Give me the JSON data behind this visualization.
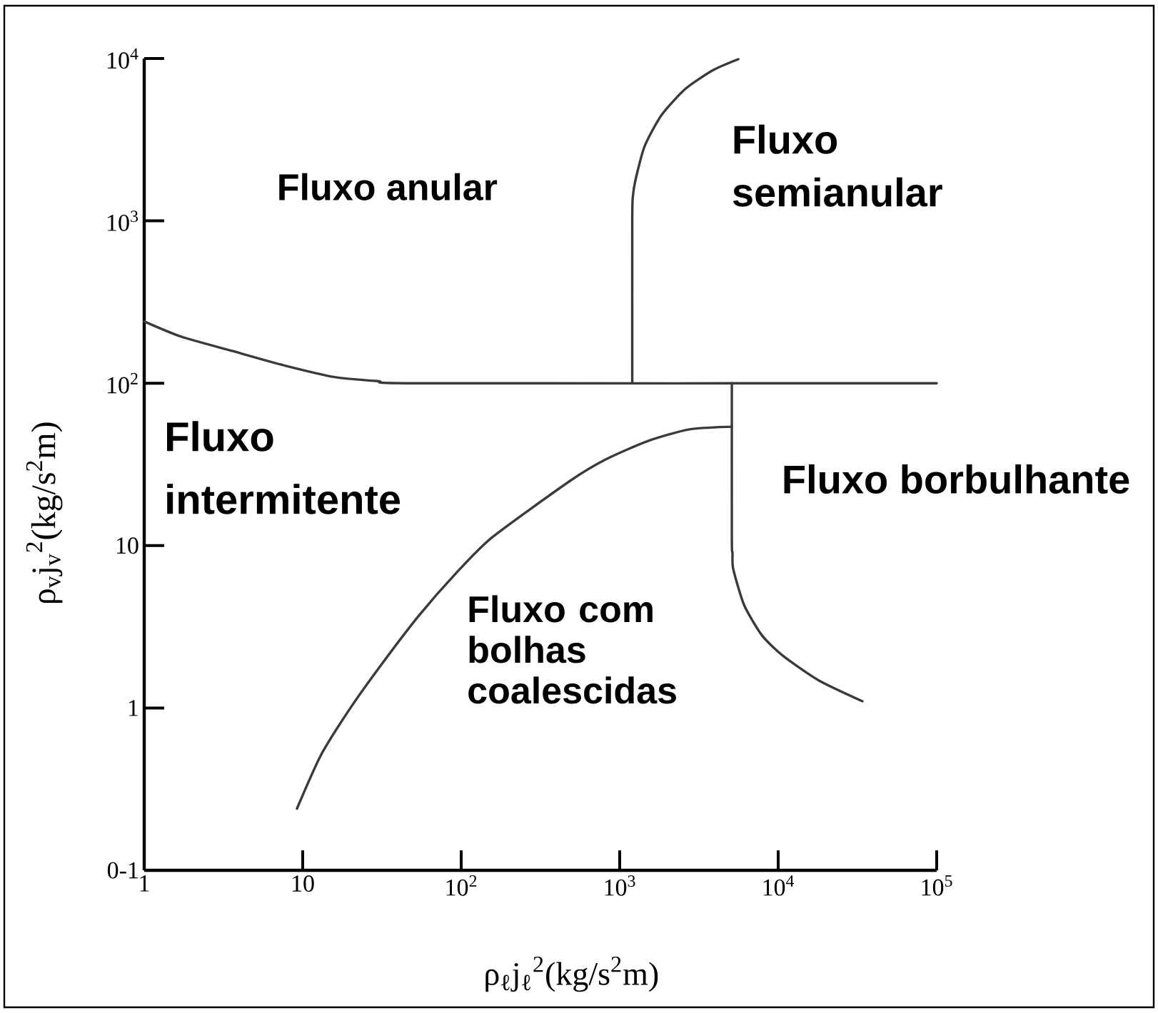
{
  "chart_data": {
    "type": "line",
    "xlabel": "ρ$_{ℓ}$j$_{ℓ}$$^{2}$(kg/s$^{2}$m)",
    "ylabel": "ρ$_{v}$j$_{v}$$^{2}$(kg/s$^{2}$m)",
    "log": "xy",
    "xlim": [
      1,
      100000
    ],
    "ylim": [
      0.1,
      10000
    ],
    "xticks": [
      1,
      10,
      {
        "value": 100,
        "label": "10$^{2}$"
      },
      {
        "value": 1000,
        "label": "10$^{3}$"
      },
      {
        "value": 10000,
        "label": "10$^{4}$"
      },
      {
        "value": 100000,
        "label": "10$^{5}$"
      }
    ],
    "yticks": [
      {
        "value": 0.1,
        "label": "0-1"
      },
      1,
      10,
      {
        "value": 100,
        "label": "10$^{2}$"
      },
      {
        "value": 1000,
        "label": "10$^{3}$"
      },
      {
        "value": 10000,
        "label": "10$^{4}$"
      }
    ],
    "series": [
      {
        "color": "#3a3a3a",
        "x": [
          1,
          1.7,
          3.6,
          7.6,
          16,
          30,
          55,
          100000
        ],
        "values": [
          240,
          194,
          158,
          129,
          109,
          103,
          100,
          100
        ]
      },
      {
        "color": "#3a3a3a",
        "x": [
          1200,
          1200,
          1210,
          1260,
          1440,
          1840,
          2600,
          3900,
          5600
        ],
        "values": [
          100,
          1000,
          1400,
          1800,
          2900,
          4500,
          6500,
          8500,
          9900
        ]
      },
      {
        "color": "#3a3a3a",
        "x": [
          9.2,
          13,
          20,
          32,
          54,
          92,
          156,
          485,
          820,
          1500,
          2750,
          5100
        ],
        "values": [
          0.24,
          0.51,
          1.0,
          1.9,
          3.7,
          6.7,
          11.2,
          25,
          34,
          44,
          52,
          54
        ]
      },
      {
        "color": "#3a3a3a",
        "x": [
          5100,
          5100,
          5150,
          5200,
          6100,
          7900,
          10700,
          18000,
          34000
        ],
        "values": [
          100,
          11,
          9,
          7.2,
          4.3,
          2.8,
          2.1,
          1.48,
          1.1
        ]
      }
    ],
    "annotations": [
      "Fluxo anular",
      "Fluxo semianular",
      "Fluxo intermitente",
      "Fluxo borbulhante",
      "Fluxo com bolhas coalescidas"
    ]
  }
}
